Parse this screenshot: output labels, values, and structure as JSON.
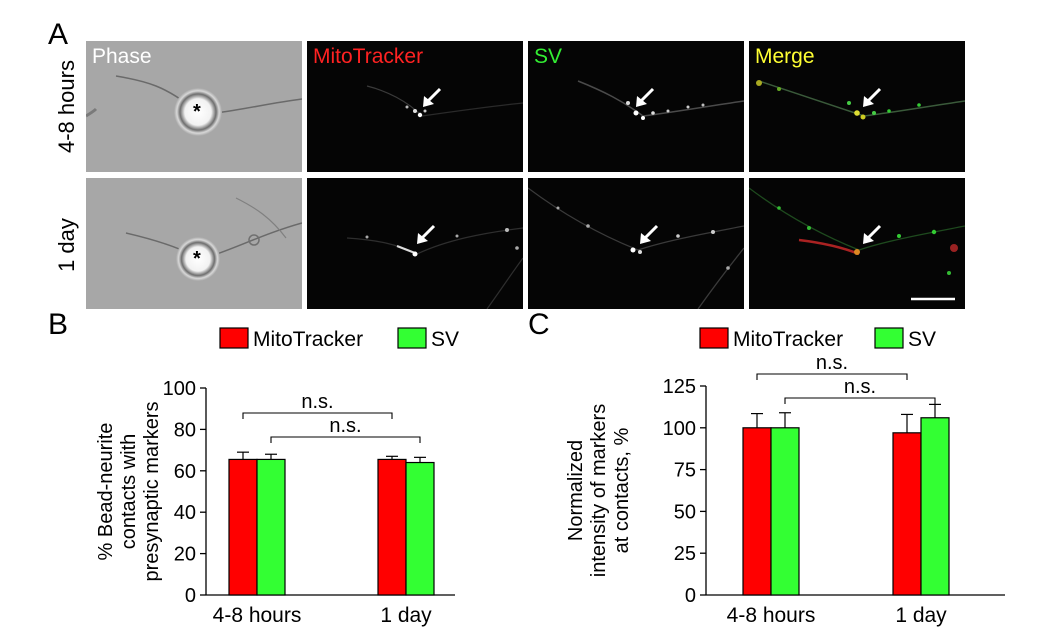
{
  "panel_letters": {
    "a": "A",
    "b": "B",
    "c": "C"
  },
  "panel_a": {
    "channels": [
      {
        "label": "Phase",
        "color": "#ffffff"
      },
      {
        "label": "MitoTracker",
        "color": "#ff2222"
      },
      {
        "label": "SV",
        "color": "#33ee33"
      },
      {
        "label": "Merge",
        "color": "#ffff33"
      }
    ],
    "rows": [
      "4-8 hours",
      "1 day"
    ],
    "bead_marker": "*"
  },
  "colors": {
    "mitotracker": "#ff0000",
    "sv": "#33ff33"
  },
  "chart_data": [
    {
      "type": "bar",
      "categories": [
        "4-8 hours",
        "1 day"
      ],
      "series": [
        {
          "name": "MitoTracker",
          "values": [
            65.5,
            65.5
          ],
          "errors": [
            3.5,
            1.5
          ]
        },
        {
          "name": "SV",
          "values": [
            65.5,
            64
          ],
          "errors": [
            2.5,
            2.5
          ]
        }
      ],
      "ylabel_lines": [
        "% Bead-neurite",
        "contacts with",
        "presynaptic markers"
      ],
      "ylim": [
        0,
        100
      ],
      "yticks": [
        0,
        20,
        40,
        60,
        80,
        100
      ],
      "legend": "top",
      "annotations": [
        "n.s.",
        "n.s."
      ]
    },
    {
      "type": "bar",
      "categories": [
        "4-8 hours",
        "1 day"
      ],
      "series": [
        {
          "name": "MitoTracker",
          "values": [
            100,
            97
          ],
          "errors": [
            8.5,
            11
          ]
        },
        {
          "name": "SV",
          "values": [
            100,
            106
          ],
          "errors": [
            9,
            8
          ]
        }
      ],
      "ylabel_lines": [
        "Normalized",
        "intensity of markers",
        "at contacts, %"
      ],
      "ylim": [
        0,
        125
      ],
      "yticks": [
        0,
        25,
        50,
        75,
        100,
        125
      ],
      "legend": "top",
      "annotations": [
        "n.s.",
        "n.s."
      ]
    }
  ]
}
